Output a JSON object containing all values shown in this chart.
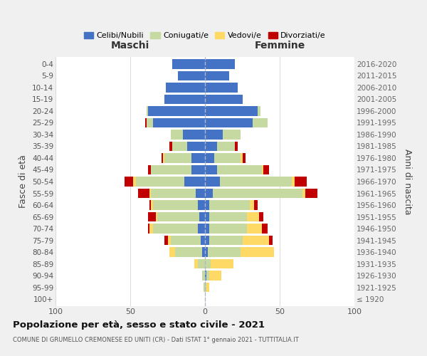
{
  "age_groups": [
    "100+",
    "95-99",
    "90-94",
    "85-89",
    "80-84",
    "75-79",
    "70-74",
    "65-69",
    "60-64",
    "55-59",
    "50-54",
    "45-49",
    "40-44",
    "35-39",
    "30-34",
    "25-29",
    "20-24",
    "15-19",
    "10-14",
    "5-9",
    "0-4"
  ],
  "birth_years": [
    "≤ 1920",
    "1921-1925",
    "1926-1930",
    "1931-1935",
    "1936-1940",
    "1941-1945",
    "1946-1950",
    "1951-1955",
    "1956-1960",
    "1961-1965",
    "1966-1970",
    "1971-1975",
    "1976-1980",
    "1981-1985",
    "1986-1990",
    "1991-1995",
    "1996-2000",
    "2001-2005",
    "2006-2010",
    "2011-2015",
    "2016-2020"
  ],
  "maschi": {
    "celibi": [
      0,
      0,
      0,
      0,
      2,
      3,
      5,
      4,
      5,
      6,
      14,
      9,
      9,
      12,
      15,
      35,
      38,
      27,
      26,
      18,
      22
    ],
    "coniugati": [
      0,
      1,
      2,
      5,
      18,
      20,
      30,
      28,
      30,
      30,
      32,
      27,
      18,
      10,
      8,
      4,
      1,
      0,
      0,
      0,
      0
    ],
    "vedovi": [
      0,
      0,
      0,
      2,
      4,
      2,
      2,
      1,
      1,
      1,
      2,
      0,
      1,
      0,
      0,
      0,
      0,
      0,
      0,
      0,
      0
    ],
    "divorziati": [
      0,
      0,
      0,
      0,
      0,
      2,
      1,
      5,
      1,
      8,
      6,
      2,
      1,
      2,
      0,
      1,
      0,
      0,
      0,
      0,
      0
    ]
  },
  "femmine": {
    "nubili": [
      0,
      0,
      1,
      0,
      2,
      3,
      3,
      3,
      3,
      5,
      10,
      8,
      6,
      8,
      12,
      32,
      35,
      25,
      22,
      16,
      20
    ],
    "coniugate": [
      0,
      1,
      2,
      4,
      22,
      22,
      25,
      25,
      27,
      60,
      48,
      30,
      18,
      12,
      12,
      10,
      2,
      0,
      0,
      0,
      0
    ],
    "vedove": [
      0,
      2,
      8,
      15,
      22,
      18,
      10,
      8,
      3,
      2,
      2,
      1,
      1,
      0,
      0,
      0,
      0,
      0,
      0,
      0,
      0
    ],
    "divorziate": [
      0,
      0,
      0,
      0,
      0,
      2,
      4,
      3,
      2,
      8,
      8,
      4,
      2,
      2,
      0,
      0,
      0,
      0,
      0,
      0,
      0
    ]
  },
  "colors": {
    "celibi": "#4472C4",
    "coniugati": "#c5d9a0",
    "vedovi": "#FFD966",
    "divorziati": "#C00000"
  },
  "xlim": 100,
  "title": "Popolazione per età, sesso e stato civile - 2021",
  "subtitle": "COMUNE DI GRUMELLO CREMONESE ED UNITI (CR) - Dati ISTAT 1° gennaio 2021 - TUTTITALIA.IT",
  "ylabel_left": "Fasce di età",
  "ylabel_right": "Anni di nascita",
  "xlabel_left": "Maschi",
  "xlabel_right": "Femmine",
  "bg_color": "#f0f0f0",
  "plot_bg": "#ffffff"
}
